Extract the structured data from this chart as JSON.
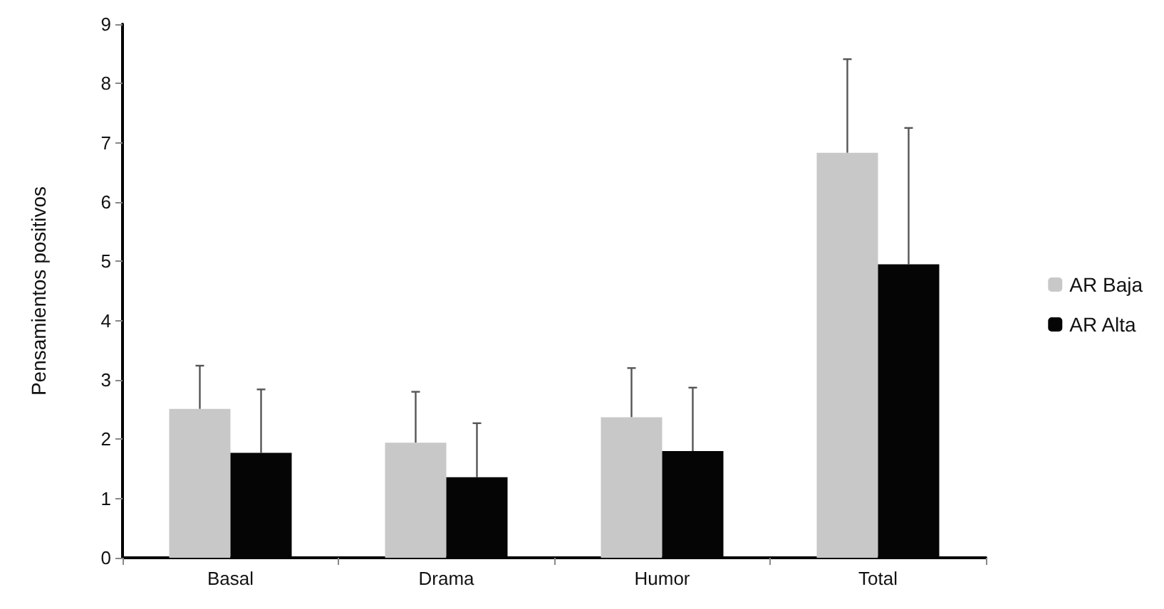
{
  "chart_data": {
    "type": "bar",
    "ylabel": "Pensamientos positivos",
    "categories": [
      "Basal",
      "Drama",
      "Humor",
      "Total"
    ],
    "series": [
      {
        "name": "AR Baja",
        "color": "#c8c8c8",
        "values": [
          2.51,
          1.94,
          2.37,
          6.83
        ],
        "errors": [
          [
            2.51,
            3.24
          ],
          [
            1.94,
            2.8
          ],
          [
            2.37,
            3.2
          ],
          [
            6.83,
            8.41
          ]
        ]
      },
      {
        "name": "AR Alta",
        "color": "#050505",
        "values": [
          1.77,
          1.36,
          1.8,
          4.95
        ],
        "errors": [
          [
            1.77,
            2.84
          ],
          [
            1.36,
            2.27
          ],
          [
            1.8,
            2.87
          ],
          [
            4.95,
            7.25
          ]
        ]
      }
    ],
    "ylim": [
      0,
      9
    ],
    "yticks": [
      0,
      1,
      2,
      3,
      4,
      5,
      6,
      7,
      8,
      9
    ],
    "grid": false,
    "legend": "right"
  }
}
